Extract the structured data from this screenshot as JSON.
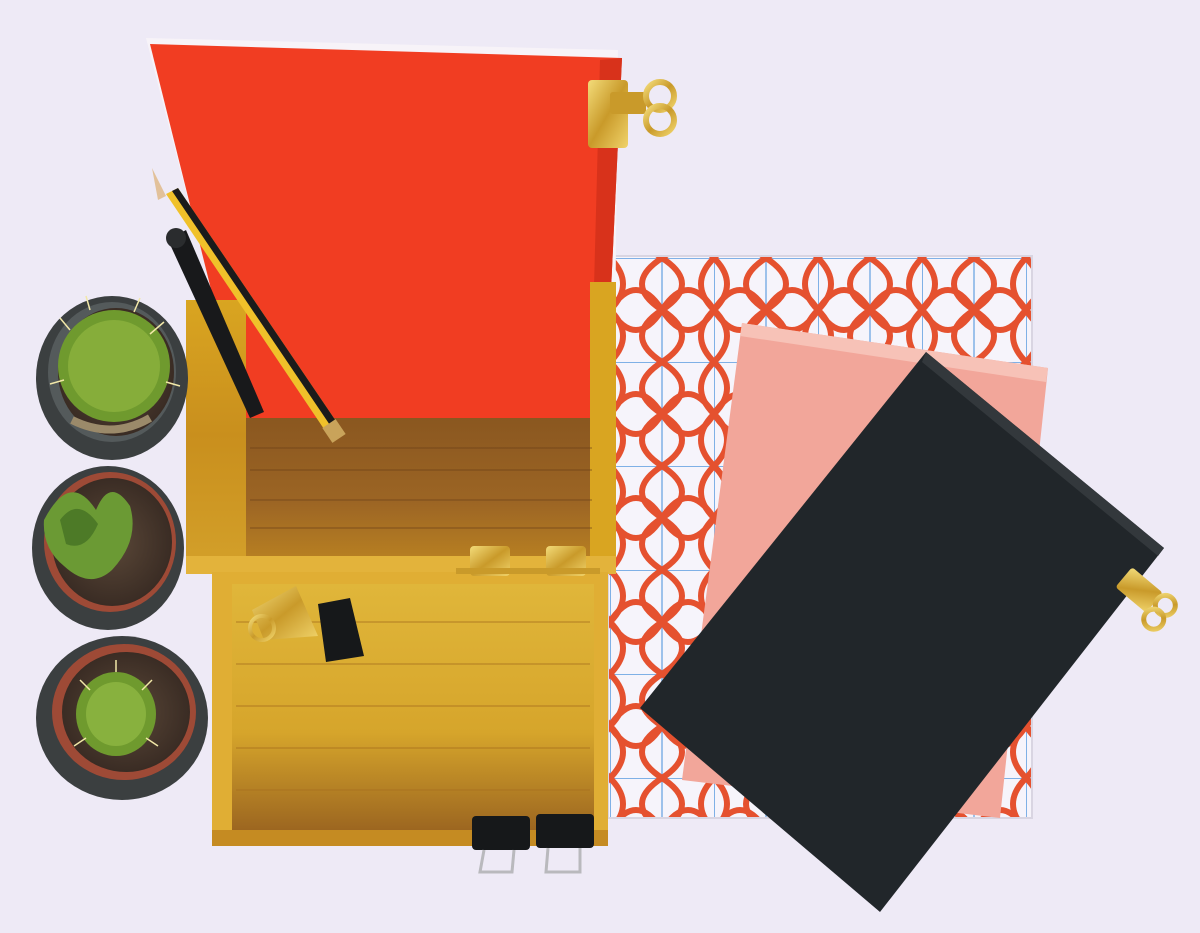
{
  "scene": {
    "description_visible_text": "",
    "palette": {
      "background": "#eeeaf6",
      "red_notebook": "#f13d22",
      "red_notebook_edge": "#f7f3f8",
      "bamboo_light": "#d9a521",
      "bamboo_mid": "#b9801a",
      "bamboo_dark": "#7a4a1c",
      "pattern_paper": "#f6f4fb",
      "pattern_lines": "#e5512f",
      "grid_lines": "#7fb0e6",
      "pink_notebook": "#f2a69a",
      "black_notebook": "#21262a",
      "pot": "#3b3f40",
      "pot_rim": "#545a5b",
      "soil": "#4a3a30",
      "cactus_green": "#6f9a2e",
      "gold_clip": "#d4b03c",
      "binder_black": "#16181a"
    },
    "objects": [
      "pot-1-cactus",
      "pot-2-succulent",
      "pot-3-cactus",
      "bamboo-box",
      "red-notebook",
      "pencil",
      "pen",
      "patterned-paper",
      "pink-notebook",
      "black-notebook",
      "gold-clip",
      "binder-clip"
    ]
  }
}
